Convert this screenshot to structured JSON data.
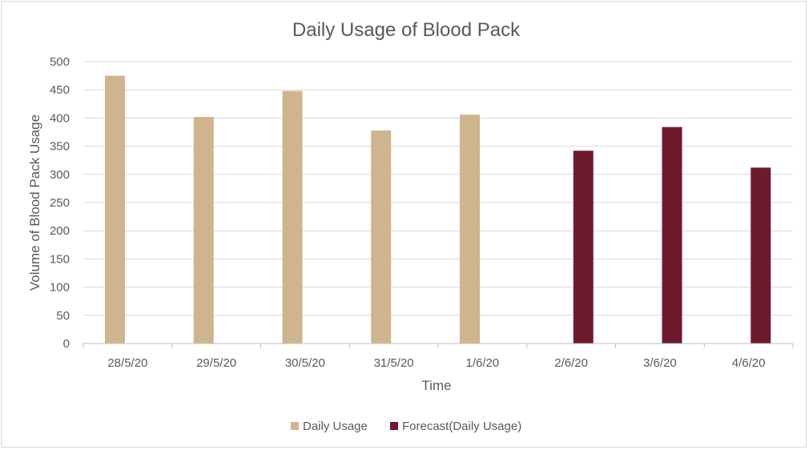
{
  "chart_data": {
    "type": "bar",
    "title": "Daily Usage of Blood Pack",
    "xlabel": "Time",
    "ylabel": "Volume of Blood Pack Usage",
    "categories": [
      "28/5/20",
      "29/5/20",
      "30/5/20",
      "31/5/20",
      "1/6/20",
      "2/6/20",
      "3/6/20",
      "4/6/20"
    ],
    "series": [
      {
        "name": "Daily Usage",
        "color": "#cfb58e",
        "values": [
          475,
          402,
          448,
          378,
          406,
          null,
          null,
          null
        ]
      },
      {
        "name": "Forecast(Daily Usage)",
        "color": "#6d1a2e",
        "values": [
          null,
          null,
          null,
          null,
          null,
          342,
          384,
          312
        ]
      }
    ],
    "ylim": [
      0,
      500
    ],
    "yticks": [
      0,
      50,
      100,
      150,
      200,
      250,
      300,
      350,
      400,
      450,
      500
    ],
    "grid": true,
    "legend_position": "bottom"
  }
}
